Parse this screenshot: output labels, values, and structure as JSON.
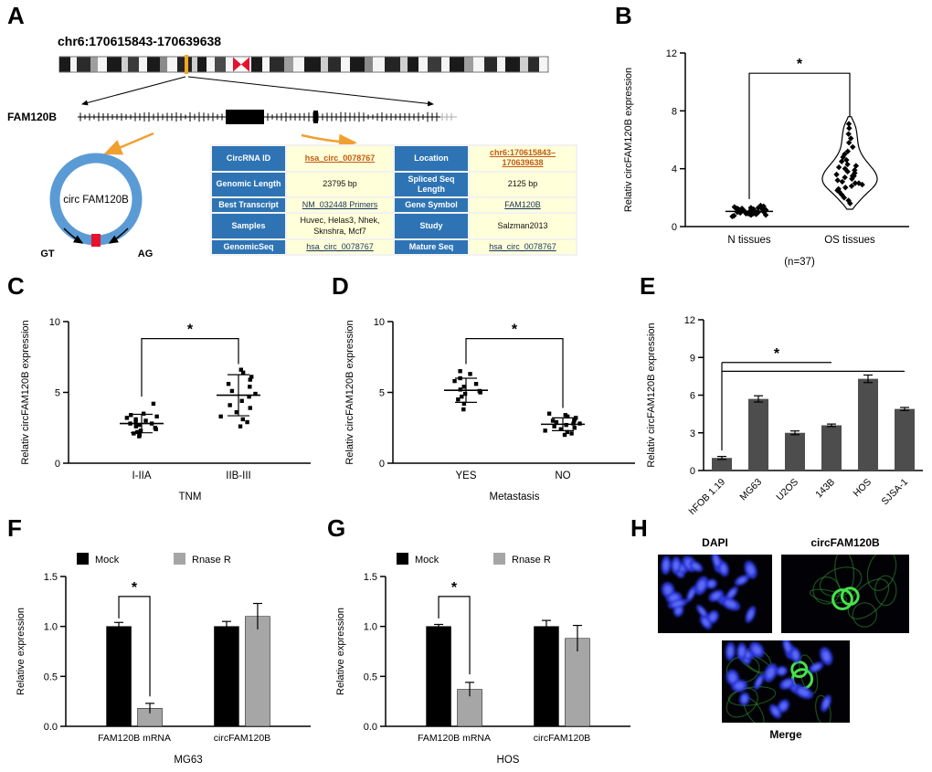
{
  "panels": {
    "A": "A",
    "B": "B",
    "C": "C",
    "D": "D",
    "E": "E",
    "F": "F",
    "G": "G",
    "H": "H"
  },
  "panelA": {
    "locus_title": "chr6:170615843-170639638",
    "gene_label": "FAM120B",
    "circle_label": "circ FAM120B",
    "splice_donor": "GT",
    "splice_acceptor": "AG",
    "colors": {
      "circle_blue": "#5b9bd5",
      "junction_red": "#e8112d",
      "arrow_orange": "#f0a030",
      "table_header_bg": "#2e74b5",
      "table_cell_bg": "#ffffd9",
      "link_orange": "#c45911",
      "link_dark": "#17365d"
    },
    "table": {
      "rows": [
        [
          {
            "t": "CircRNA ID",
            "k": "label"
          },
          {
            "t": "hsa_circ_0078767",
            "k": "link-orange"
          },
          {
            "t": "Location",
            "k": "label"
          },
          {
            "t": "chr6:170615843–170639638",
            "k": "link-orange"
          }
        ],
        [
          {
            "t": "Genomic Length",
            "k": "label"
          },
          {
            "t": "23795 bp",
            "k": "plain"
          },
          {
            "t": "Spliced Seq Length",
            "k": "label"
          },
          {
            "t": "2125 bp",
            "k": "plain"
          }
        ],
        [
          {
            "t": "Best Transcript",
            "k": "label"
          },
          {
            "t": "NM_032448  Primers",
            "k": "link-dark"
          },
          {
            "t": "Gene Symbol",
            "k": "label"
          },
          {
            "t": "FAM120B",
            "k": "link-dark"
          }
        ],
        [
          {
            "t": "Samples",
            "k": "label"
          },
          {
            "t": "Huvec, Helas3, Nhek, Sknshra, Mcf7",
            "k": "plain"
          },
          {
            "t": "Study",
            "k": "label"
          },
          {
            "t": "Salzman2013",
            "k": "plain"
          }
        ],
        [
          {
            "t": "GenomicSeq",
            "k": "label"
          },
          {
            "t": "hsa_circ_0078767",
            "k": "link-dark"
          },
          {
            "t": "Mature Seq",
            "k": "label"
          },
          {
            "t": "hsa_circ_0078767",
            "k": "link-dark"
          }
        ]
      ]
    }
  },
  "chart_data": [
    {
      "panel": "B",
      "type": "scatter",
      "subtype": "violin",
      "ylabel": "Relativ circFAM120B expression",
      "ylim": [
        0,
        12
      ],
      "yticks": [
        0,
        4,
        8,
        12
      ],
      "categories": [
        "N tissues",
        "OS tissues"
      ],
      "annotation": "(n=37)",
      "significance": "*",
      "series": [
        {
          "name": "N tissues",
          "mean": 1.05,
          "points": [
            0.7,
            0.75,
            0.8,
            0.85,
            0.85,
            0.9,
            0.9,
            0.95,
            0.95,
            1.0,
            1.0,
            1.0,
            1.0,
            1.05,
            1.05,
            1.05,
            1.1,
            1.1,
            1.1,
            1.15,
            1.15,
            1.2,
            1.2,
            1.2,
            1.25,
            1.25,
            1.3,
            1.3,
            1.35,
            1.4,
            0.8,
            0.9,
            1.0,
            1.1,
            1.2,
            1.0,
            1.45
          ]
        },
        {
          "name": "OS tissues",
          "mean": 3.6,
          "points": [
            1.6,
            1.8,
            2.0,
            2.2,
            2.4,
            2.5,
            2.6,
            2.7,
            2.8,
            2.9,
            3.0,
            3.0,
            3.1,
            3.2,
            3.3,
            3.4,
            3.5,
            3.5,
            3.6,
            3.7,
            3.8,
            3.9,
            4.0,
            4.1,
            4.2,
            4.3,
            4.5,
            4.6,
            4.8,
            5.0,
            5.2,
            5.5,
            5.8,
            6.1,
            6.4,
            6.8,
            7.1
          ]
        }
      ]
    },
    {
      "panel": "C",
      "type": "scatter",
      "ylabel": "Relativ circFAM120B expression",
      "xlabel": "TNM",
      "ylim": [
        0,
        10
      ],
      "yticks": [
        0,
        5,
        10
      ],
      "categories": [
        "I-IIA",
        "IIB-III"
      ],
      "significance": "*",
      "series": [
        {
          "name": "I-IIA",
          "mean": 2.8,
          "sd": 0.65,
          "points": [
            1.9,
            2.0,
            2.1,
            2.2,
            2.3,
            2.4,
            2.5,
            2.6,
            2.7,
            2.8,
            2.8,
            2.9,
            3.0,
            3.1,
            3.2,
            3.3,
            3.4,
            3.5,
            4.2
          ]
        },
        {
          "name": "IIB-III",
          "mean": 4.8,
          "sd": 1.45,
          "points": [
            2.6,
            2.9,
            3.1,
            3.3,
            3.6,
            3.9,
            4.1,
            4.4,
            4.7,
            4.9,
            5.1,
            5.4,
            5.6,
            5.9,
            6.1,
            6.4,
            6.6
          ]
        }
      ]
    },
    {
      "panel": "D",
      "type": "scatter",
      "ylabel": "Relativ circFAM120B expression",
      "xlabel": "Metastasis",
      "ylim": [
        0,
        10
      ],
      "yticks": [
        0,
        5,
        10
      ],
      "categories": [
        "YES",
        "NO"
      ],
      "significance": "*",
      "series": [
        {
          "name": "YES",
          "mean": 5.15,
          "sd": 0.85,
          "points": [
            3.8,
            4.2,
            4.5,
            4.7,
            4.9,
            5.0,
            5.1,
            5.2,
            5.4,
            5.6,
            5.8,
            6.0,
            6.3,
            6.5
          ]
        },
        {
          "name": "NO",
          "mean": 2.75,
          "sd": 0.45,
          "points": [
            2.0,
            2.1,
            2.2,
            2.3,
            2.4,
            2.5,
            2.6,
            2.7,
            2.8,
            2.8,
            2.9,
            3.0,
            3.0,
            3.1,
            3.2,
            3.3,
            3.4,
            3.5
          ]
        }
      ]
    },
    {
      "panel": "E",
      "type": "bar",
      "ylabel": "Relativ circFAM120B expression",
      "ylim": [
        0,
        12
      ],
      "yticks": [
        0,
        3,
        6,
        9,
        12
      ],
      "categories": [
        "hFOB 1.19",
        "MG63",
        "U2OS",
        "143B",
        "HOS",
        "SJSA-1"
      ],
      "values": [
        1.0,
        5.7,
        3.0,
        3.6,
        7.3,
        4.9
      ],
      "errors": [
        0.12,
        0.25,
        0.15,
        0.1,
        0.3,
        0.12
      ],
      "bar_color": "#4d4d4d",
      "significance": "*"
    },
    {
      "panel": "F",
      "type": "grouped-bar",
      "ylabel": "Relative expression",
      "xlabel": "MG63",
      "ylim": [
        0,
        1.5
      ],
      "yticks": [
        0,
        0.5,
        1.0,
        1.5
      ],
      "categories": [
        "FAM120B mRNA",
        "circFAM120B"
      ],
      "legend": [
        "Mock",
        "Rnase R"
      ],
      "significance": "*",
      "series": [
        {
          "name": "Mock",
          "color": "#000000",
          "values": [
            1.0,
            1.0
          ],
          "errors": [
            0.04,
            0.05
          ]
        },
        {
          "name": "Rnase R",
          "color": "#a6a6a6",
          "values": [
            0.18,
            1.1
          ],
          "errors": [
            0.05,
            0.13
          ]
        }
      ]
    },
    {
      "panel": "G",
      "type": "grouped-bar",
      "ylabel": "Relative expression",
      "xlabel": "HOS",
      "ylim": [
        0,
        1.5
      ],
      "yticks": [
        0,
        0.5,
        1.0,
        1.5
      ],
      "categories": [
        "FAM120B mRNA",
        "circFAM120B"
      ],
      "legend": [
        "Mock",
        "Rnase R"
      ],
      "significance": "*",
      "series": [
        {
          "name": "Mock",
          "color": "#000000",
          "values": [
            1.0,
            1.0
          ],
          "errors": [
            0.02,
            0.06
          ]
        },
        {
          "name": "Rnase R",
          "color": "#a6a6a6",
          "values": [
            0.37,
            0.88
          ],
          "errors": [
            0.07,
            0.13
          ]
        }
      ]
    }
  ],
  "panelH": {
    "img1_label": "DAPI",
    "img2_label": "circFAM120B",
    "img3_label": "Merge"
  }
}
